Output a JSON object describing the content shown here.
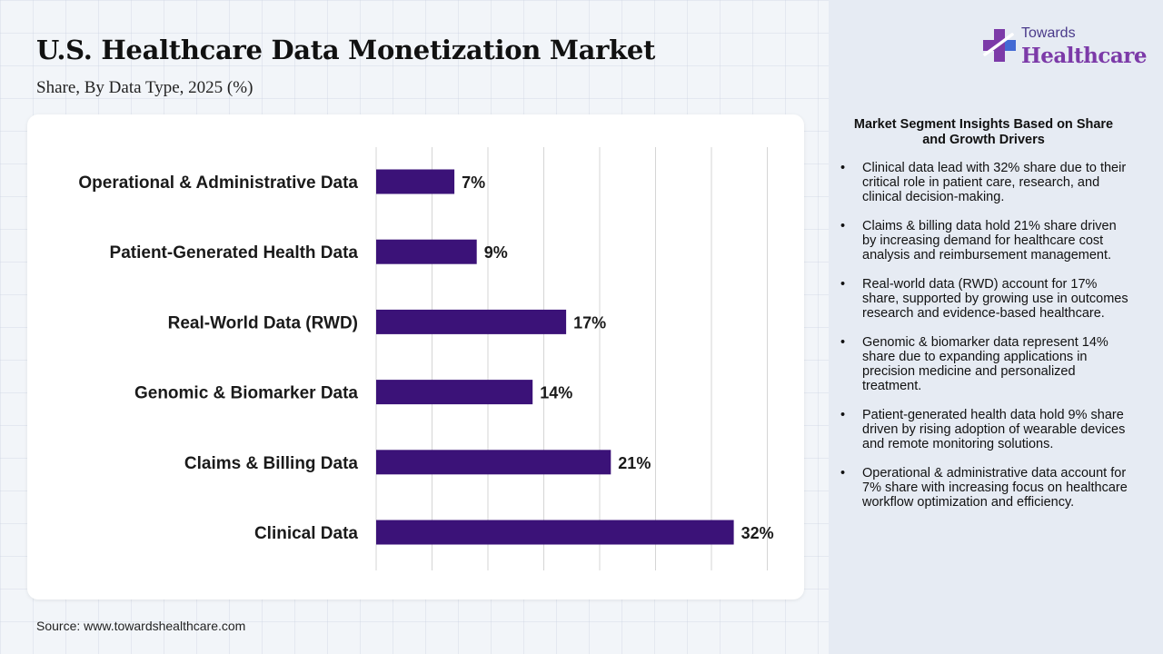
{
  "header": {
    "title": "U.S. Healthcare Data Monetization Market",
    "subtitle": "Share, By Data Type, 2025 (%)"
  },
  "logo": {
    "line1": "Towards",
    "line2": "Healthcare",
    "icon": "medical-cross-icon"
  },
  "colors": {
    "bar": "#3b1278",
    "logo_purple": "#7c3aa8",
    "logo_blue": "#3d6fd8"
  },
  "chart_data": {
    "type": "bar",
    "orientation": "horizontal",
    "title": "U.S. Healthcare Data Monetization Market",
    "subtitle": "Share, By Data Type, 2025 (%)",
    "categories": [
      "Operational & Administrative Data",
      "Patient-Generated Health Data",
      "Real-World Data (RWD)",
      "Genomic & Biomarker Data",
      "Claims & Billing Data",
      "Clinical Data"
    ],
    "values": [
      7,
      9,
      17,
      14,
      21,
      32
    ],
    "value_labels": [
      "7%",
      "9%",
      "17%",
      "14%",
      "21%",
      "32%"
    ],
    "unit": "%",
    "xlim": [
      0,
      35
    ],
    "grid": true,
    "legend": "none"
  },
  "insights": {
    "title": "Market Segment Insights Based on Share and Growth Drivers",
    "bullet": "•",
    "items": [
      "Clinical data lead with 32% share due to their critical role in patient care, research, and clinical decision-making.",
      "Claims & billing data hold 21% share driven by increasing demand for healthcare cost analysis and reimbursement management.",
      "Real-world data (RWD) account for 17% share, supported by growing use in outcomes research and evidence-based healthcare.",
      "Genomic & biomarker data represent 14% share due to expanding applications in precision medicine and personalized treatment.",
      "Patient-generated health data hold 9% share driven by rising adoption of wearable devices and remote monitoring solutions.",
      "Operational & administrative data account for 7% share with increasing focus on healthcare workflow optimization and efficiency."
    ]
  },
  "footer": {
    "source": "Source: www.towardshealthcare.com"
  }
}
